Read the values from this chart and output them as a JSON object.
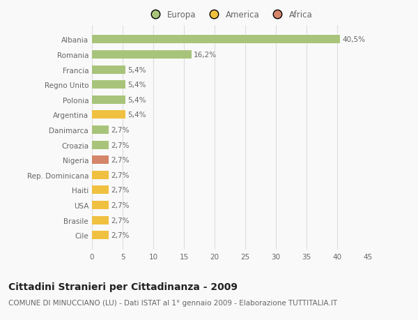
{
  "categories": [
    "Albania",
    "Romania",
    "Francia",
    "Regno Unito",
    "Polonia",
    "Argentina",
    "Danimarca",
    "Croazia",
    "Nigeria",
    "Rep. Dominicana",
    "Haiti",
    "USA",
    "Brasile",
    "Cile"
  ],
  "values": [
    40.5,
    16.2,
    5.4,
    5.4,
    5.4,
    5.4,
    2.7,
    2.7,
    2.7,
    2.7,
    2.7,
    2.7,
    2.7,
    2.7
  ],
  "labels": [
    "40,5%",
    "16,2%",
    "5,4%",
    "5,4%",
    "5,4%",
    "5,4%",
    "2,7%",
    "2,7%",
    "2,7%",
    "2,7%",
    "2,7%",
    "2,7%",
    "2,7%",
    "2,7%"
  ],
  "colors": [
    "#a8c47a",
    "#a8c47a",
    "#a8c47a",
    "#a8c47a",
    "#a8c47a",
    "#f0c040",
    "#a8c47a",
    "#a8c47a",
    "#d4856a",
    "#f0c040",
    "#f0c040",
    "#f0c040",
    "#f0c040",
    "#f0c040"
  ],
  "legend_labels": [
    "Europa",
    "America",
    "Africa"
  ],
  "legend_colors": [
    "#a8c47a",
    "#f0c040",
    "#d4856a"
  ],
  "title": "Cittadini Stranieri per Cittadinanza - 2009",
  "subtitle": "COMUNE DI MINUCCIANO (LU) - Dati ISTAT al 1° gennaio 2009 - Elaborazione TUTTITALIA.IT",
  "xlim": [
    0,
    45
  ],
  "xticks": [
    0,
    5,
    10,
    15,
    20,
    25,
    30,
    35,
    40,
    45
  ],
  "background_color": "#f9f9f9",
  "grid_color": "#dddddd",
  "bar_height": 0.55,
  "title_fontsize": 10,
  "subtitle_fontsize": 7.5,
  "label_fontsize": 7.5,
  "tick_fontsize": 7.5,
  "legend_fontsize": 8.5
}
